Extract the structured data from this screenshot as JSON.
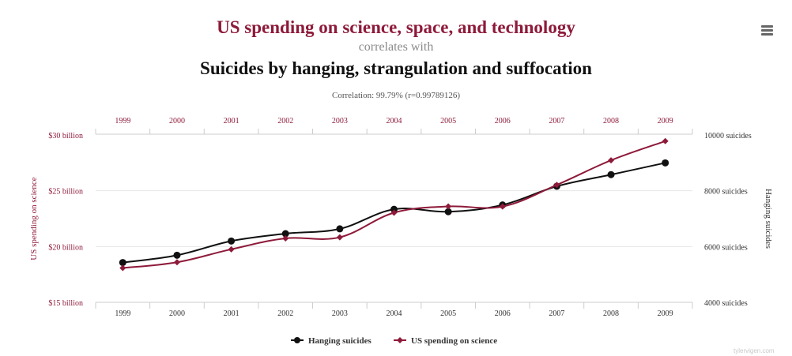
{
  "header": {
    "title_top": "US spending on science, space, and technology",
    "connector": "correlates with",
    "title_bottom": "Suicides by hanging, strangulation and suffocation",
    "correlation": "Correlation: 99.79% (r=0.99789126)"
  },
  "menu": {
    "icon": "hamburger-menu-icon"
  },
  "watermark": "tylervigen.com",
  "colors": {
    "spending": "#8e1a3a",
    "suicides": "#111111",
    "grid": "#e6e6e6",
    "axis": "#cccccc"
  },
  "chart_data": {
    "type": "line",
    "title": "US spending on science, space, and technology correlates with Suicides by hanging, strangulation and suffocation",
    "subtitle": "Correlation: 99.79% (r=0.99789126)",
    "categories": [
      "1999",
      "2000",
      "2001",
      "2002",
      "2003",
      "2004",
      "2005",
      "2006",
      "2007",
      "2008",
      "2009"
    ],
    "y_left": {
      "label": "US spending on science",
      "ticks": [
        15,
        20,
        25,
        30
      ],
      "tick_labels": [
        "$15 billion",
        "$20 billion",
        "$25 billion",
        "$30 billion"
      ],
      "range": [
        15,
        30
      ]
    },
    "y_right": {
      "label": "Hanging suicides",
      "ticks": [
        4000,
        6000,
        8000,
        10000
      ],
      "tick_labels": [
        "4000 suicides",
        "6000 suicides",
        "8000 suicides",
        "10000 suicides"
      ],
      "range": [
        4000,
        10000
      ]
    },
    "series": [
      {
        "name": "Hanging suicides",
        "axis": "right",
        "color": "#111111",
        "marker": "circle",
        "values": [
          5427,
          5688,
          6198,
          6462,
          6635,
          7336,
          7248,
          7491,
          8161,
          8578,
          9000
        ]
      },
      {
        "name": "US spending on science",
        "axis": "left",
        "color": "#8e1a3a",
        "marker": "diamond",
        "values": [
          18.079,
          18.594,
          19.753,
          20.734,
          20.831,
          23.029,
          23.597,
          23.584,
          25.525,
          27.731,
          29.449
        ]
      }
    ],
    "grid": true,
    "legend": "bottom-center"
  }
}
